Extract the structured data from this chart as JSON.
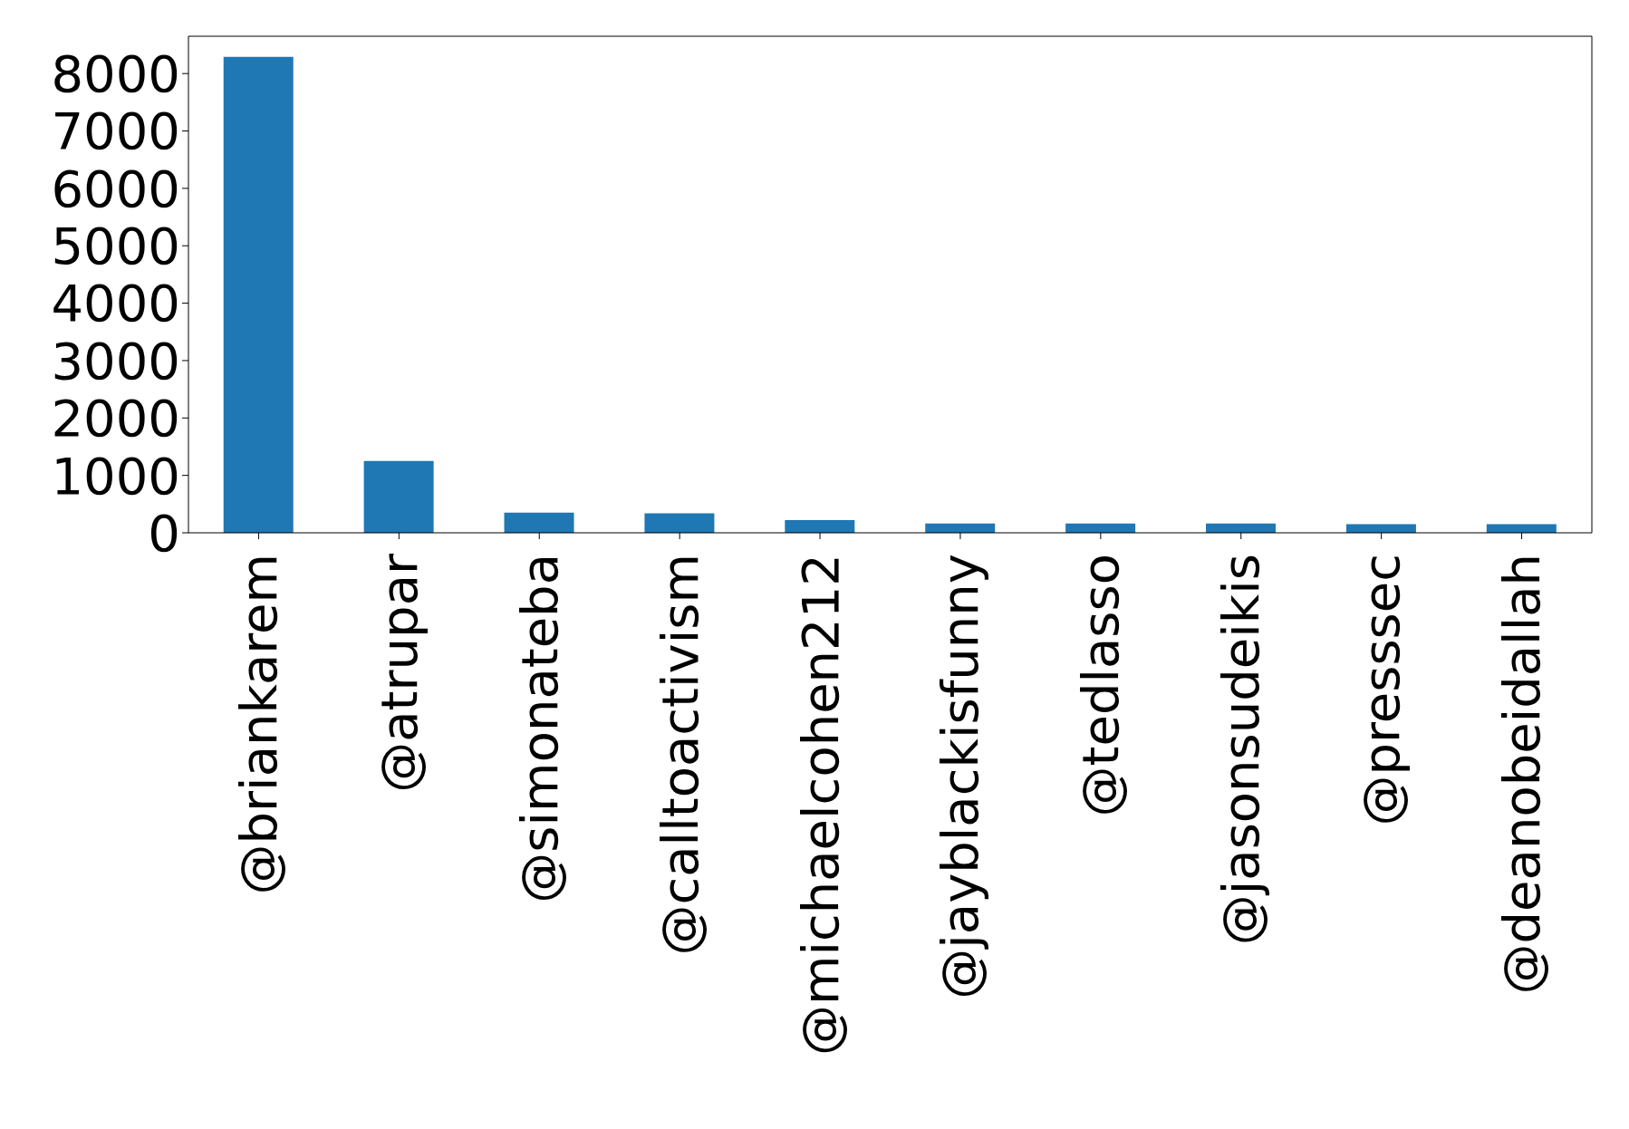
{
  "chart_data": {
    "type": "bar",
    "categories": [
      "@briankarem",
      "@atrupar",
      "@simonateba",
      "@calltoactivism",
      "@michaelcohen212",
      "@jayblackisfunny",
      "@tedlasso",
      "@jasonsudeikis",
      "@presssec",
      "@deanobeidallah"
    ],
    "values": [
      8290,
      1250,
      350,
      340,
      220,
      160,
      160,
      160,
      150,
      150
    ],
    "color": "#1f77b4",
    "ylim": [
      0,
      8650
    ],
    "yticks": [
      0,
      1000,
      2000,
      3000,
      4000,
      5000,
      6000,
      7000,
      8000
    ],
    "grid": false
  }
}
